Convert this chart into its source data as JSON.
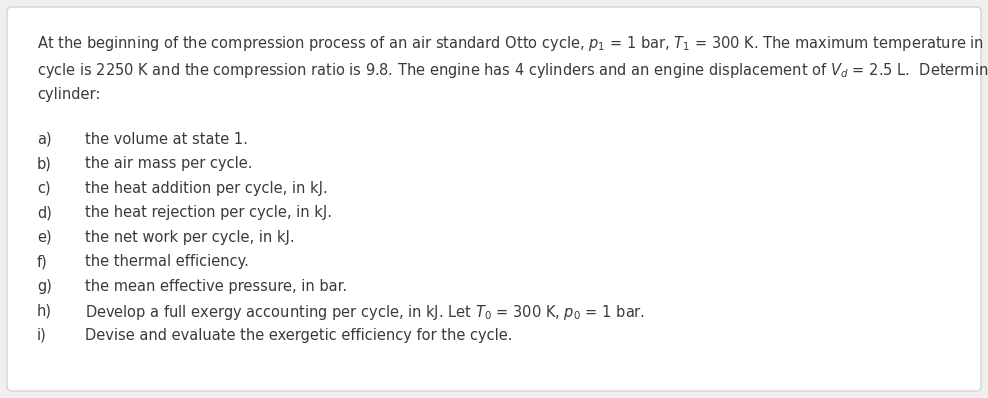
{
  "background_color": "#efefef",
  "box_color": "#ffffff",
  "box_edge_color": "#cccccc",
  "text_color": "#3a3a3a",
  "font_size": 10.5,
  "title_lines": [
    "At the beginning of the compression process of an air standard Otto cycle, $p_1$ = 1 bar, $T_1$ = 300 K. The maximum temperature in the",
    "cycle is 2250 K and the compression ratio is 9.8. The engine has 4 cylinders and an engine displacement of $V_d$ = 2.5 L.  Determine per",
    "cylinder:"
  ],
  "items": [
    [
      "a)",
      "the volume at state 1."
    ],
    [
      "b)",
      "the air mass per cycle."
    ],
    [
      "c)",
      "the heat addition per cycle, in kJ."
    ],
    [
      "d)",
      "the heat rejection per cycle, in kJ."
    ],
    [
      "e)",
      "the net work per cycle, in kJ."
    ],
    [
      "f)",
      "the thermal efficiency."
    ],
    [
      "g)",
      "the mean effective pressure, in bar."
    ],
    [
      "h)",
      "Develop a full exergy accounting per cycle, in kJ. Let $T_0$ = 300 K, $p_0$ = 1 bar."
    ],
    [
      "i)",
      "Devise and evaluate the exergetic efficiency for the cycle."
    ]
  ],
  "fig_width": 9.88,
  "fig_height": 3.98,
  "dpi": 100
}
